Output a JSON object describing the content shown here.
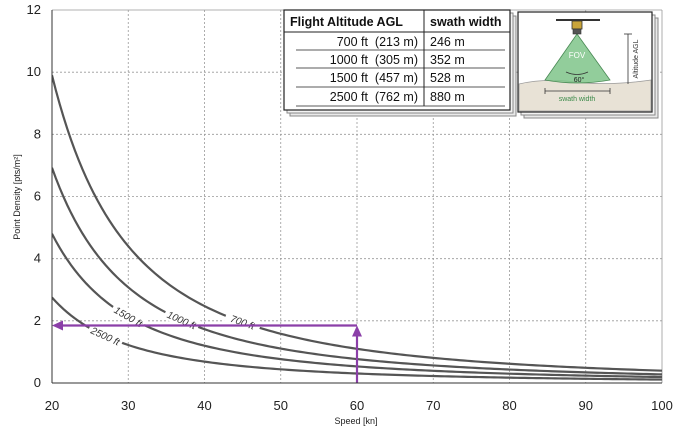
{
  "chart_data": {
    "type": "line",
    "xlabel": "Speed [kn]",
    "ylabel": "Point Density [pts/m²]",
    "xlim": [
      20,
      100
    ],
    "ylim": [
      0,
      12
    ],
    "xticks": [
      20,
      30,
      40,
      50,
      60,
      70,
      80,
      90,
      100
    ],
    "yticks": [
      0,
      2,
      4,
      6,
      8,
      10,
      12
    ],
    "grid": true,
    "series": [
      {
        "name": "700 ft",
        "k": 396,
        "color": "#555555"
      },
      {
        "name": "1000 ft",
        "k": 277,
        "color": "#555555"
      },
      {
        "name": "1500 ft",
        "k": 192,
        "color": "#555555"
      },
      {
        "name": "2500 ft",
        "k": 110,
        "color": "#555555"
      }
    ],
    "annotation": {
      "color": "#8b3fa8",
      "x_value": 60,
      "y_value": 1.85,
      "description_points": [
        [
          60,
          0
        ],
        [
          60,
          1.85
        ],
        [
          20,
          1.85
        ]
      ]
    },
    "table": {
      "headers": [
        "Flight Altitude AGL",
        "swath width"
      ],
      "rows": [
        [
          "700 ft  (213 m)",
          "246 m"
        ],
        [
          "1000 ft  (305 m)",
          "352 m"
        ],
        [
          "1500 ft  (457 m)",
          "528 m"
        ],
        [
          "2500 ft  (762 m)",
          "880 m"
        ]
      ]
    },
    "inset": {
      "fov_label": "FOV",
      "angle_label": "60°",
      "altitude_label": "Altitude AGL",
      "swath_label": "swath width"
    }
  },
  "colors": {
    "grid": "#999999",
    "curve": "#555555",
    "annotation": "#8b3fa8",
    "fov_fill": "#7fc48a",
    "ground": "#e8e2d6"
  }
}
